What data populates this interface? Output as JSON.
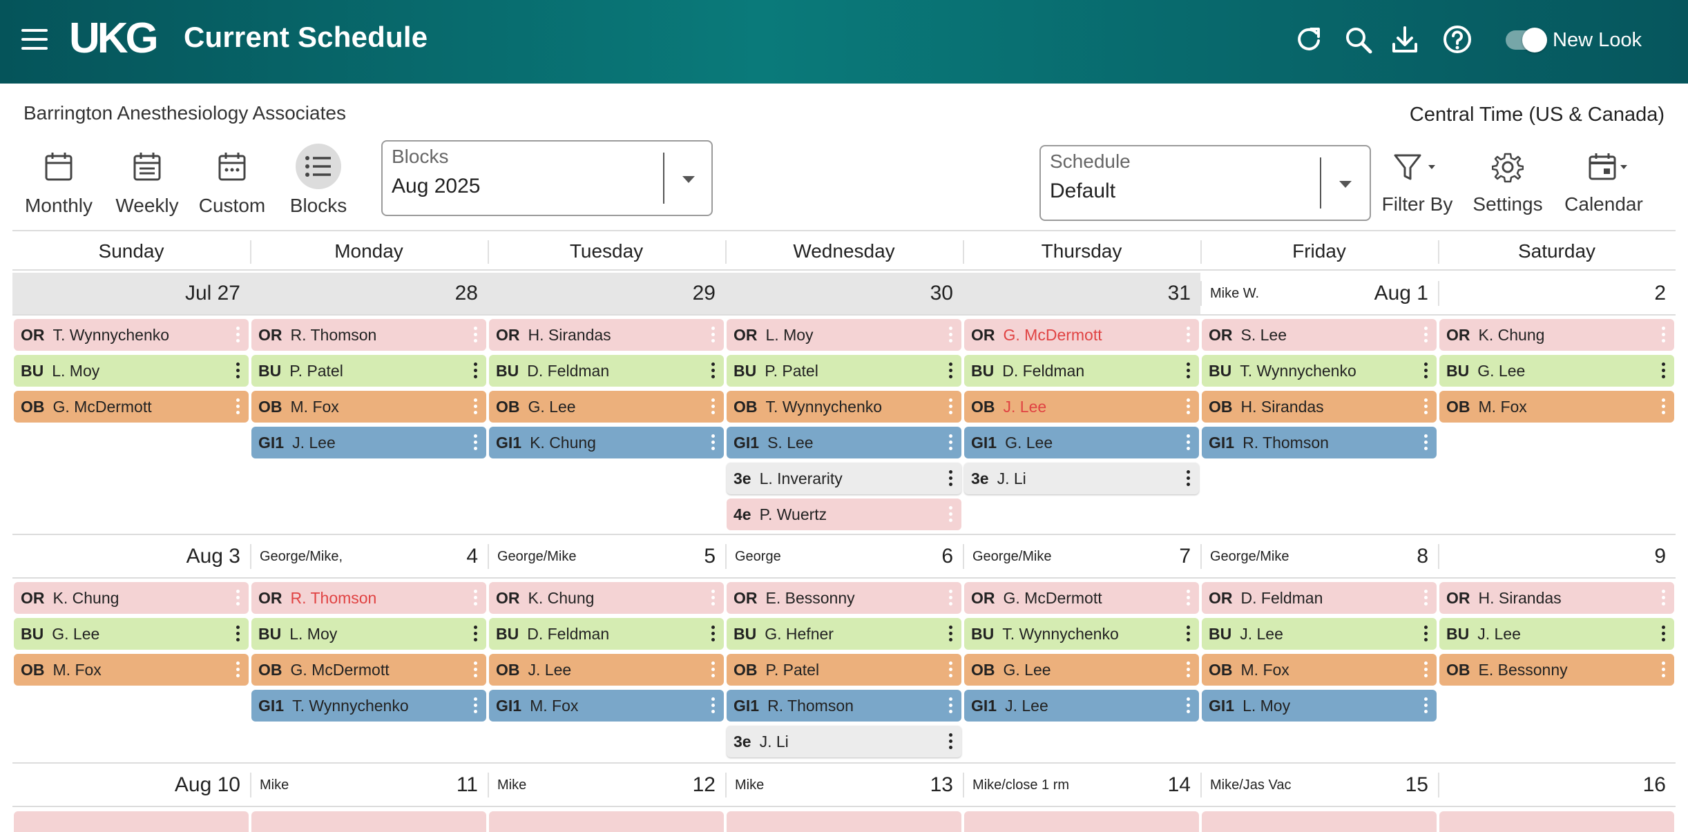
{
  "header": {
    "logo_text": "UKG",
    "title": "Current Schedule",
    "icons": [
      "refresh-icon",
      "search-icon",
      "download-icon",
      "help-icon"
    ],
    "toggle_label": "New Look",
    "toggle_on": true
  },
  "org_name": "Barrington Anesthesiology Associates",
  "timezone": "Central Time (US & Canada)",
  "views": [
    {
      "label": "Monthly",
      "active": false
    },
    {
      "label": "Weekly",
      "active": false
    },
    {
      "label": "Custom",
      "active": false
    },
    {
      "label": "Blocks",
      "active": true
    }
  ],
  "blocks_select": {
    "label": "Blocks",
    "value": "Aug 2025"
  },
  "schedule_select": {
    "label": "Schedule",
    "value": "Default"
  },
  "tools": {
    "filter": "Filter By",
    "settings": "Settings",
    "calendar": "Calendar"
  },
  "days_of_week": [
    "Sunday",
    "Monday",
    "Tuesday",
    "Wednesday",
    "Thursday",
    "Friday",
    "Saturday"
  ],
  "colors": {
    "OR": "#f4d3d4",
    "BU": "#d5ecb2",
    "OB": "#ecb07c",
    "GI1": "#7aa7c9",
    "3e": "#ececec",
    "4e": "#f4d3d4",
    "highlight_name": "#e04343"
  },
  "weeks": [
    {
      "days": [
        {
          "date": "Jul 27",
          "note": "",
          "outside_month": true,
          "assignments": [
            {
              "code": "OR",
              "name": "T. Wynnychenko"
            },
            {
              "code": "BU",
              "name": "L. Moy"
            },
            {
              "code": "OB",
              "name": "G. McDermott"
            }
          ]
        },
        {
          "date": "28",
          "note": "",
          "outside_month": true,
          "assignments": [
            {
              "code": "OR",
              "name": "R. Thomson"
            },
            {
              "code": "BU",
              "name": "P. Patel"
            },
            {
              "code": "OB",
              "name": "M. Fox"
            },
            {
              "code": "GI1",
              "name": "J. Lee"
            }
          ]
        },
        {
          "date": "29",
          "note": "",
          "outside_month": true,
          "assignments": [
            {
              "code": "OR",
              "name": "H. Sirandas"
            },
            {
              "code": "BU",
              "name": "D. Feldman"
            },
            {
              "code": "OB",
              "name": "G. Lee"
            },
            {
              "code": "GI1",
              "name": "K. Chung"
            }
          ]
        },
        {
          "date": "30",
          "note": "",
          "outside_month": true,
          "assignments": [
            {
              "code": "OR",
              "name": "L. Moy"
            },
            {
              "code": "BU",
              "name": "P. Patel"
            },
            {
              "code": "OB",
              "name": "T. Wynnychenko"
            },
            {
              "code": "GI1",
              "name": "S. Lee"
            },
            {
              "code": "3e",
              "name": "L. Inverarity"
            },
            {
              "code": "4e",
              "name": "P. Wuertz"
            }
          ]
        },
        {
          "date": "31",
          "note": "",
          "outside_month": true,
          "assignments": [
            {
              "code": "OR",
              "name": "G. McDermott",
              "highlight": true
            },
            {
              "code": "BU",
              "name": "D. Feldman"
            },
            {
              "code": "OB",
              "name": "J. Lee",
              "highlight": true
            },
            {
              "code": "GI1",
              "name": "G. Lee"
            },
            {
              "code": "3e",
              "name": "J. Li"
            }
          ]
        },
        {
          "date": "Aug 1",
          "note": "Mike W.",
          "outside_month": false,
          "assignments": [
            {
              "code": "OR",
              "name": "S. Lee"
            },
            {
              "code": "BU",
              "name": "T. Wynnychenko"
            },
            {
              "code": "OB",
              "name": "H. Sirandas"
            },
            {
              "code": "GI1",
              "name": "R. Thomson"
            }
          ]
        },
        {
          "date": "2",
          "note": "",
          "outside_month": false,
          "assignments": [
            {
              "code": "OR",
              "name": "K. Chung"
            },
            {
              "code": "BU",
              "name": "G. Lee"
            },
            {
              "code": "OB",
              "name": "M. Fox"
            }
          ]
        }
      ]
    },
    {
      "days": [
        {
          "date": "Aug 3",
          "note": "",
          "outside_month": false,
          "assignments": [
            {
              "code": "OR",
              "name": "K. Chung"
            },
            {
              "code": "BU",
              "name": "G. Lee"
            },
            {
              "code": "OB",
              "name": "M. Fox"
            }
          ]
        },
        {
          "date": "4",
          "note": "George/Mike,",
          "outside_month": false,
          "assignments": [
            {
              "code": "OR",
              "name": "R. Thomson",
              "highlight": true
            },
            {
              "code": "BU",
              "name": "L. Moy"
            },
            {
              "code": "OB",
              "name": "G. McDermott"
            },
            {
              "code": "GI1",
              "name": "T. Wynnychenko"
            }
          ]
        },
        {
          "date": "5",
          "note": "George/Mike",
          "outside_month": false,
          "assignments": [
            {
              "code": "OR",
              "name": "K. Chung"
            },
            {
              "code": "BU",
              "name": "D. Feldman"
            },
            {
              "code": "OB",
              "name": "J. Lee"
            },
            {
              "code": "GI1",
              "name": "M. Fox"
            }
          ]
        },
        {
          "date": "6",
          "note": "George",
          "outside_month": false,
          "assignments": [
            {
              "code": "OR",
              "name": "E. Bessonny"
            },
            {
              "code": "BU",
              "name": "G. Hefner"
            },
            {
              "code": "OB",
              "name": "P. Patel"
            },
            {
              "code": "GI1",
              "name": "R. Thomson"
            },
            {
              "code": "3e",
              "name": "J. Li"
            }
          ]
        },
        {
          "date": "7",
          "note": "George/Mike",
          "outside_month": false,
          "assignments": [
            {
              "code": "OR",
              "name": "G. McDermott"
            },
            {
              "code": "BU",
              "name": "T. Wynnychenko"
            },
            {
              "code": "OB",
              "name": "G. Lee"
            },
            {
              "code": "GI1",
              "name": "J. Lee"
            }
          ]
        },
        {
          "date": "8",
          "note": "George/Mike",
          "outside_month": false,
          "assignments": [
            {
              "code": "OR",
              "name": "D. Feldman"
            },
            {
              "code": "BU",
              "name": "J. Lee"
            },
            {
              "code": "OB",
              "name": "M. Fox"
            },
            {
              "code": "GI1",
              "name": "L. Moy"
            }
          ]
        },
        {
          "date": "9",
          "note": "",
          "outside_month": false,
          "assignments": [
            {
              "code": "OR",
              "name": "H. Sirandas"
            },
            {
              "code": "BU",
              "name": "J. Lee"
            },
            {
              "code": "OB",
              "name": "E. Bessonny"
            }
          ]
        }
      ]
    },
    {
      "days": [
        {
          "date": "Aug 10",
          "note": "",
          "outside_month": false,
          "assignments": []
        },
        {
          "date": "11",
          "note": "Mike",
          "outside_month": false,
          "assignments": []
        },
        {
          "date": "12",
          "note": "Mike",
          "outside_month": false,
          "assignments": []
        },
        {
          "date": "13",
          "note": "Mike",
          "outside_month": false,
          "assignments": []
        },
        {
          "date": "14",
          "note": "Mike/close 1 rm",
          "outside_month": false,
          "assignments": []
        },
        {
          "date": "15",
          "note": "Mike/Jas Vac",
          "outside_month": false,
          "assignments": []
        },
        {
          "date": "16",
          "note": "",
          "outside_month": false,
          "assignments": []
        }
      ]
    }
  ]
}
